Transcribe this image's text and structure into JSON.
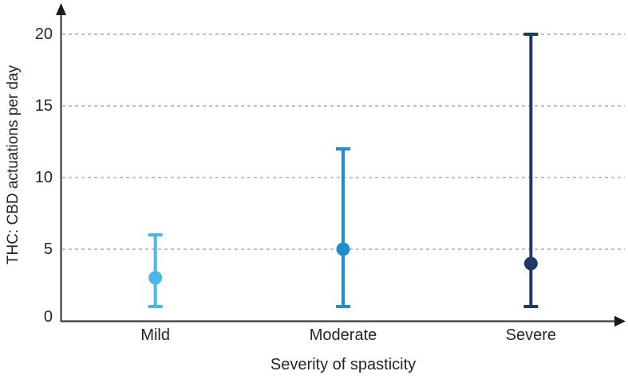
{
  "figure": {
    "background": "#ffffff"
  },
  "chart_data": {
    "type": "scatter",
    "subtype": "median-with-range-errorbars",
    "title": "",
    "xlabel": "Severity of spasticity",
    "ylabel": "THC: CBD actuations per day",
    "categories": [
      "Mild",
      "Moderate",
      "Severe"
    ],
    "series": [
      {
        "name": "Mild",
        "median": 3,
        "range_min": 1,
        "range_max": 6,
        "color": "#4AB7E9"
      },
      {
        "name": "Moderate",
        "median": 5,
        "range_min": 1,
        "range_max": 12,
        "color": "#1E8FC9"
      },
      {
        "name": "Severe",
        "median": 4,
        "range_min": 1,
        "range_max": 20,
        "color": "#1E3A64"
      }
    ],
    "yticks": [
      0,
      5,
      10,
      15,
      20
    ],
    "ylim": [
      0,
      22
    ],
    "grid": {
      "horizontal": true,
      "style": "dashed",
      "color": "#ADADAD",
      "at": [
        5,
        10,
        15,
        20
      ]
    },
    "legend_position": "none",
    "axis_color": "#3F3F3F",
    "arrow_color": "#1a1a1a",
    "text_color": "#262626",
    "axis_arrows": true
  }
}
